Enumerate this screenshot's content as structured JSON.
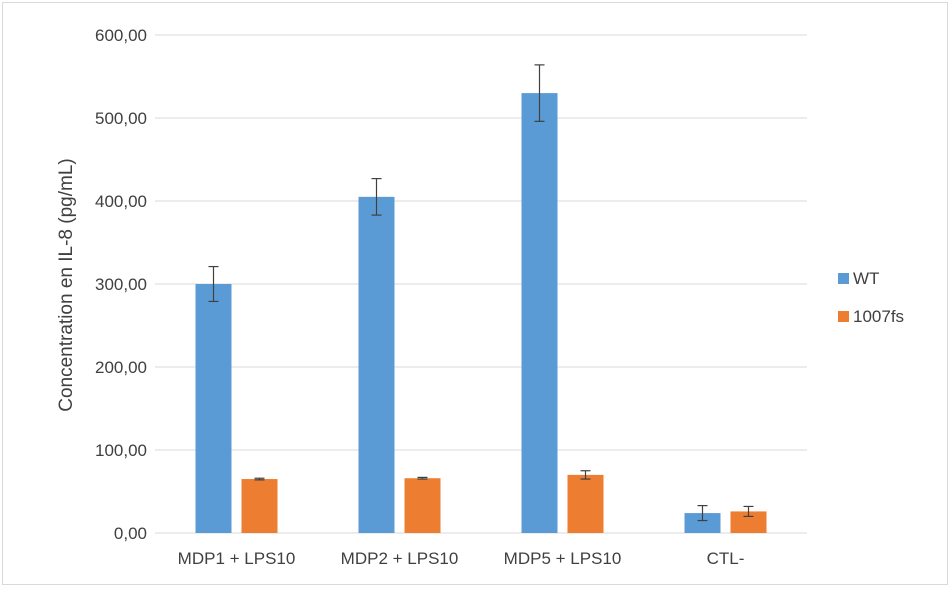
{
  "chart_data": {
    "type": "bar",
    "title": "",
    "xlabel": "",
    "ylabel": "Concentration en IL-8 (pg/mL)",
    "categories": [
      "MDP1 + LPS10",
      "MDP2 + LPS10",
      "MDP5 + LPS10",
      "CTL-"
    ],
    "ylim": [
      0,
      600
    ],
    "yticks": [
      "0,00",
      "100,00",
      "200,00",
      "300,00",
      "400,00",
      "500,00",
      "600,00"
    ],
    "ytick_values": [
      0,
      100,
      200,
      300,
      400,
      500,
      600
    ],
    "grid": true,
    "legend_position": "right",
    "series": [
      {
        "name": "WT",
        "color": "#5b9bd5",
        "values": [
          300,
          405,
          530,
          24
        ],
        "errors": [
          21,
          22,
          34,
          9
        ]
      },
      {
        "name": "1007fs",
        "color": "#ed7d31",
        "values": [
          65,
          66,
          70,
          26
        ],
        "errors": [
          1,
          1,
          5,
          6
        ]
      }
    ]
  }
}
